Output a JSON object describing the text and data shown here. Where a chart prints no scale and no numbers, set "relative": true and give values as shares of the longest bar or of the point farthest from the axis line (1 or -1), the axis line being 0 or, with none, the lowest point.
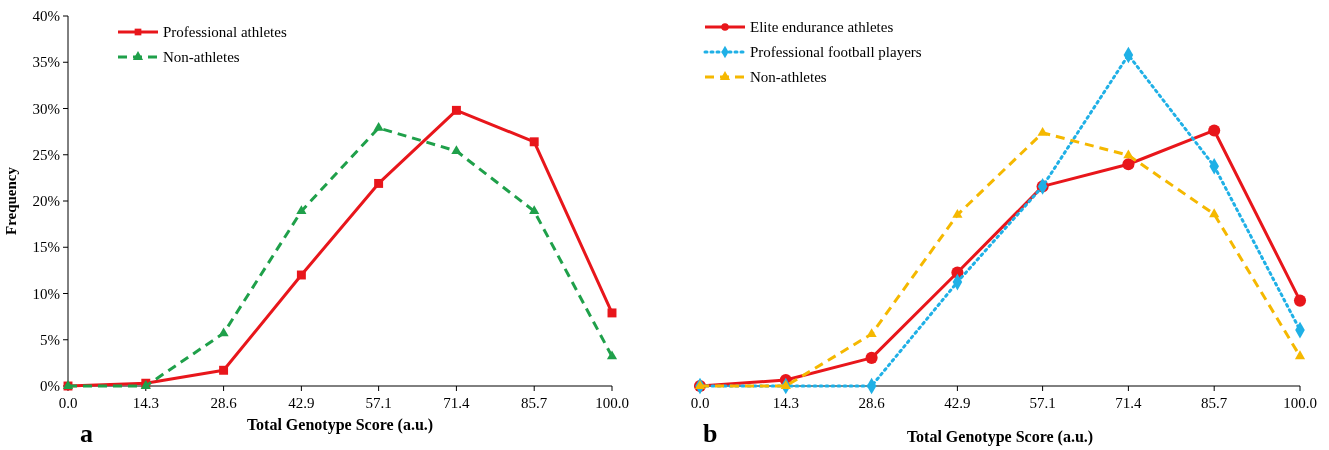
{
  "chart_data": [
    {
      "type": "line",
      "xlabel": "Total Genotype Score (a.u.)",
      "ylabel": "Frequency",
      "annotations": [
        "a"
      ],
      "x": [
        0,
        14.3,
        28.6,
        42.9,
        57.1,
        71.4,
        85.7,
        100
      ],
      "xlim": [
        0,
        100
      ],
      "xticks": [
        {
          "value": 0,
          "label": "0.0"
        },
        {
          "value": 14.3,
          "label": "14.3"
        },
        {
          "value": 28.6,
          "label": "28.6"
        },
        {
          "value": 42.9,
          "label": "42.9"
        },
        {
          "value": 57.1,
          "label": "57.1"
        },
        {
          "value": 71.4,
          "label": "71.4"
        },
        {
          "value": 85.7,
          "label": "85.7"
        },
        {
          "value": 100,
          "label": "100.0"
        }
      ],
      "ylim": [
        0,
        40
      ],
      "yticks": [
        {
          "value": 0,
          "label": "0%"
        },
        {
          "value": 5,
          "label": "5%"
        },
        {
          "value": 10,
          "label": "10%"
        },
        {
          "value": 15,
          "label": "15%"
        },
        {
          "value": 20,
          "label": "20%"
        },
        {
          "value": 25,
          "label": "25%"
        },
        {
          "value": 30,
          "label": "30%"
        },
        {
          "value": 35,
          "label": "35%"
        },
        {
          "value": 40,
          "label": "40%"
        }
      ],
      "legend": "top left",
      "series": [
        {
          "name": "Professional athletes",
          "color": "#e8161b",
          "marker": "square",
          "line_style": "solid",
          "values": [
            0,
            0.3,
            1.7,
            12.0,
            21.9,
            29.8,
            26.4,
            7.9
          ]
        },
        {
          "name": "Non-athletes",
          "color": "#1fa04a",
          "marker": "triangle",
          "line_style": "dashed",
          "values": [
            0,
            0,
            5.7,
            18.9,
            27.9,
            25.4,
            18.9,
            3.2
          ]
        }
      ]
    },
    {
      "type": "line",
      "relative": true,
      "xlabel": "Total Genotype Score (a.u.)",
      "annotations": [
        "b"
      ],
      "x": [
        0,
        14.3,
        28.6,
        42.9,
        57.1,
        71.4,
        85.7,
        100
      ],
      "xlim": [
        0,
        100
      ],
      "xticks": [
        {
          "value": 0,
          "label": "0.0"
        },
        {
          "value": 14.3,
          "label": "14.3"
        },
        {
          "value": 28.6,
          "label": "28.6"
        },
        {
          "value": 42.9,
          "label": "42.9"
        },
        {
          "value": 57.1,
          "label": "57.1"
        },
        {
          "value": 71.4,
          "label": "71.4"
        },
        {
          "value": 85.7,
          "label": "85.7"
        },
        {
          "value": 100,
          "label": "100.0"
        }
      ],
      "legend": "top left",
      "series": [
        {
          "name": "Elite endurance athletes",
          "color": "#e8161b",
          "marker": "circle",
          "line_style": "solid",
          "values": [
            0,
            0.018,
            0.085,
            0.343,
            0.603,
            0.67,
            0.772,
            0.258
          ]
        },
        {
          "name": "Professional football players",
          "color": "#1fb0e6",
          "marker": "diamond",
          "line_style": "dotted",
          "values": [
            0,
            0,
            0,
            0.314,
            0.603,
            1,
            0.664,
            0.169
          ]
        },
        {
          "name": "Non-athletes",
          "color": "#f5b800",
          "marker": "triangle",
          "line_style": "dashed",
          "values": [
            0,
            0,
            0.157,
            0.517,
            0.765,
            0.697,
            0.519,
            0.09
          ]
        }
      ]
    }
  ]
}
